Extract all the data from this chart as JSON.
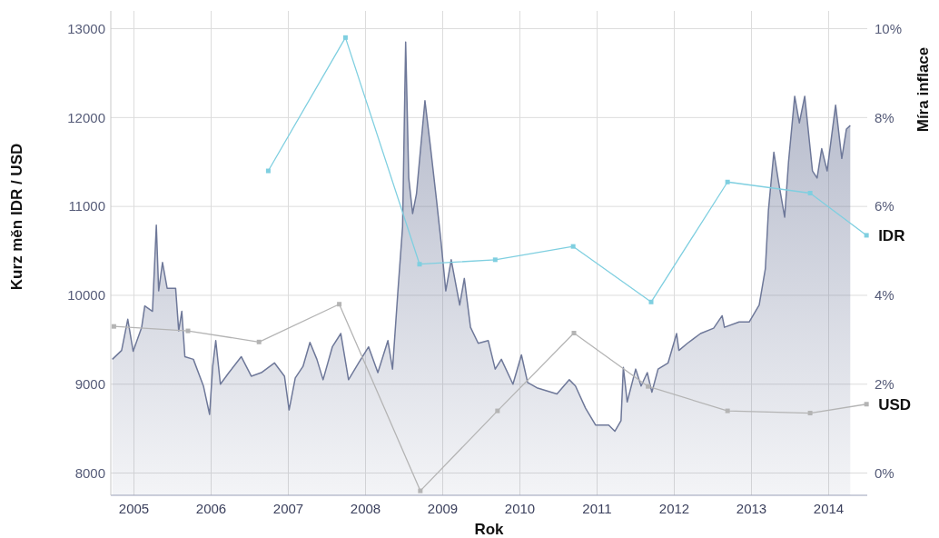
{
  "chart_data": {
    "type": "area",
    "xlabel": "Rok",
    "ylabel": "Kurz měn IDR / USD",
    "y2label": "Míra inflace",
    "xlim": [
      2005.0,
      2014.8
    ],
    "xticks": [
      {
        "value": 2005.3,
        "label": "2005"
      },
      {
        "value": 2006.3,
        "label": "2006"
      },
      {
        "value": 2007.3,
        "label": "2007"
      },
      {
        "value": 2008.3,
        "label": "2008"
      },
      {
        "value": 2009.3,
        "label": "2009"
      },
      {
        "value": 2010.3,
        "label": "2010"
      },
      {
        "value": 2011.3,
        "label": "2011"
      },
      {
        "value": 2012.3,
        "label": "2012"
      },
      {
        "value": 2013.3,
        "label": "2013"
      },
      {
        "value": 2014.3,
        "label": "2014"
      }
    ],
    "ylim": [
      7750,
      13200
    ],
    "yticks": [
      8000,
      9000,
      10000,
      11000,
      12000,
      13000
    ],
    "y2lim": [
      -0.5,
      10.4
    ],
    "y2ticks": [
      {
        "value": 0,
        "label": "0%"
      },
      {
        "value": 2,
        "label": "2%"
      },
      {
        "value": 4,
        "label": "4%"
      },
      {
        "value": 6,
        "label": "6%"
      },
      {
        "value": 8,
        "label": "8%"
      },
      {
        "value": 10,
        "label": "10%"
      }
    ],
    "grid": true,
    "legend": false,
    "series": [
      {
        "color": "#6e7899",
        "x": [
          2005.02,
          2005.14,
          2005.22,
          2005.29,
          2005.4,
          2005.44,
          2005.54,
          2005.59,
          2005.62,
          2005.67,
          2005.73,
          2005.84,
          2005.88,
          2005.92,
          2005.96,
          2006.07,
          2006.2,
          2006.28,
          2006.32,
          2006.36,
          2006.42,
          2006.53,
          2006.69,
          2006.82,
          2006.95,
          2007.12,
          2007.25,
          2007.31,
          2007.39,
          2007.49,
          2007.58,
          2007.67,
          2007.75,
          2007.87,
          2007.98,
          2008.08,
          2008.21,
          2008.34,
          2008.46,
          2008.59,
          2008.65,
          2008.72,
          2008.78,
          2008.82,
          2008.86,
          2008.91,
          2008.96,
          2009.07,
          2009.14,
          2009.22,
          2009.28,
          2009.34,
          2009.41,
          2009.52,
          2009.58,
          2009.66,
          2009.76,
          2009.89,
          2009.98,
          2010.06,
          2010.21,
          2010.32,
          2010.4,
          2010.52,
          2010.78,
          2010.94,
          2011.02,
          2011.15,
          2011.28,
          2011.45,
          2011.53,
          2011.61,
          2011.64,
          2011.69,
          2011.8,
          2011.87,
          2011.95,
          2012.01,
          2012.09,
          2012.22,
          2012.33,
          2012.36,
          2012.47,
          2012.64,
          2012.81,
          2012.92,
          2012.95,
          2013.14,
          2013.27,
          2013.4,
          2013.48,
          2013.52,
          2013.59,
          2013.65,
          2013.73,
          2013.78,
          2013.86,
          2013.92,
          2013.99,
          2014.09,
          2014.15,
          2014.21,
          2014.28,
          2014.39,
          2014.47,
          2014.53,
          2014.58
        ],
        "values": [
          9280,
          9380,
          9730,
          9370,
          9640,
          9880,
          9820,
          10790,
          10050,
          10370,
          10080,
          10080,
          9600,
          9820,
          9310,
          9280,
          8980,
          8660,
          9200,
          9490,
          9000,
          9130,
          9310,
          9090,
          9130,
          9240,
          9090,
          8710,
          9070,
          9200,
          9470,
          9280,
          9050,
          9420,
          9570,
          9050,
          9240,
          9420,
          9130,
          9490,
          9170,
          10050,
          10770,
          12850,
          11320,
          10920,
          11140,
          12190,
          11680,
          11070,
          10590,
          10050,
          10400,
          9890,
          10190,
          9640,
          9460,
          9490,
          9170,
          9280,
          9000,
          9330,
          9020,
          8960,
          8890,
          9050,
          8980,
          8730,
          8540,
          8540,
          8470,
          8590,
          9190,
          8800,
          9170,
          8980,
          9130,
          8910,
          9170,
          9240,
          9570,
          9380,
          9460,
          9570,
          9630,
          9770,
          9640,
          9700,
          9700,
          9890,
          10300,
          10960,
          11610,
          11280,
          10880,
          11500,
          12240,
          11940,
          12240,
          11400,
          11320,
          11650,
          11400,
          12140,
          11540,
          11870,
          11910
        ]
      },
      {
        "type": "line",
        "axis": "y2",
        "name": "IDR",
        "color": "#7fcfe0",
        "marker": "square",
        "x": [
          2007.04,
          2008.04,
          2009.0,
          2009.98,
          2010.99,
          2012.0,
          2012.99,
          2014.06,
          2014.79
        ],
        "values": [
          6.8,
          9.8,
          4.7,
          4.8,
          5.1,
          3.85,
          6.55,
          6.3,
          5.35
        ]
      },
      {
        "type": "line",
        "axis": "y2",
        "name": "USD",
        "color": "#b4b4b4",
        "marker": "square",
        "x": [
          2005.04,
          2006.0,
          2006.92,
          2007.96,
          2009.01,
          2010.01,
          2011.0,
          2011.96,
          2012.99,
          2014.06,
          2014.79
        ],
        "values": [
          3.3,
          3.2,
          2.95,
          3.8,
          -0.4,
          1.4,
          3.15,
          1.95,
          1.4,
          1.35,
          1.55
        ]
      }
    ]
  }
}
